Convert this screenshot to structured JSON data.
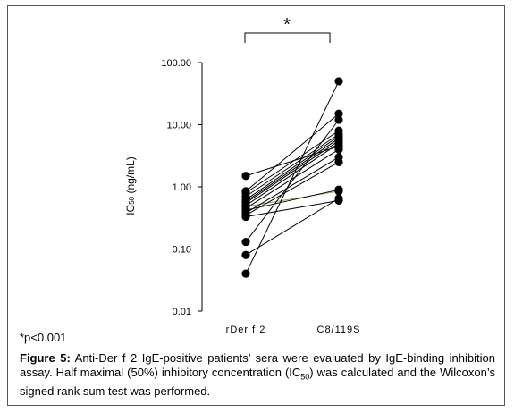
{
  "significance_mark": "*",
  "pvalue_note": "*p<0.001",
  "caption": {
    "label": "Figure 5:",
    "text": " Anti-Der f 2 IgE-positive patients’ sera were evaluated by IgE-binding inhibition assay. Half maximal (50%) inhibitory concentration (IC50) was calculated and the Wilcoxon’s signed rank sum test was performed."
  },
  "colors": {
    "line": "#000000",
    "highlight_line": "#9e9a5a",
    "marker": "#000000"
  },
  "chart_data": {
    "type": "scatter",
    "title": "",
    "xlabel": "",
    "ylabel": "IC50 (ng/mL)",
    "yscale": "log",
    "ylim": [
      0.01,
      100
    ],
    "yticks": [
      "0.01",
      "0.10",
      "1.00",
      "10.00",
      "100.00"
    ],
    "categories": [
      "rDer f 2",
      "C8/119S"
    ],
    "pairs": [
      [
        1.5,
        4.5
      ],
      [
        0.85,
        15
      ],
      [
        0.8,
        8
      ],
      [
        0.7,
        7
      ],
      [
        0.62,
        6.5
      ],
      [
        0.58,
        6
      ],
      [
        0.55,
        5.5
      ],
      [
        0.5,
        5
      ],
      [
        0.45,
        4
      ],
      [
        0.48,
        0.85
      ],
      [
        0.42,
        0.9
      ],
      [
        0.38,
        3
      ],
      [
        0.35,
        2.5
      ],
      [
        0.33,
        0.6
      ],
      [
        0.13,
        12
      ],
      [
        0.08,
        0.65
      ],
      [
        0.04,
        50
      ]
    ],
    "highlight_pair_index": 9
  }
}
